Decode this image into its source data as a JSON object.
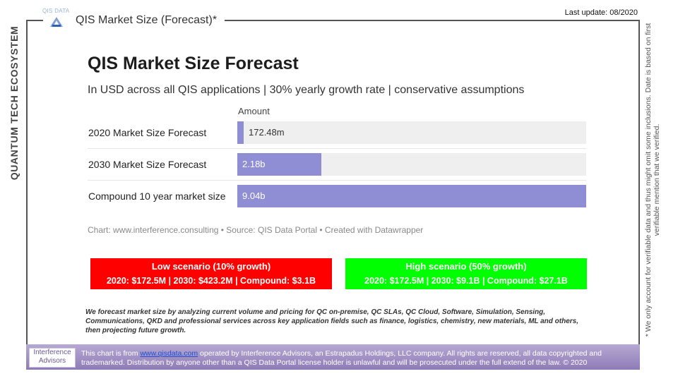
{
  "sidebar": {
    "vertical_label": "QUANTUM TECH ECOSYSTEM"
  },
  "header": {
    "logo_text": "QIS DATA",
    "title": "QIS Market Size (Forecast)*",
    "last_update": "Last update: 08/2020"
  },
  "side_note": "* We only account for verifiable data and thus might omit some inclusions. Date is based on first verifiable mention that we verified.",
  "chart_data": {
    "type": "bar",
    "orientation": "horizontal",
    "title": "QIS Market Size Forecast",
    "subtitle": "In USD across all QIS applications | 30% yearly growth rate | conservative assumptions",
    "column_header": "Amount",
    "categories": [
      "2020 Market Size Forecast",
      "2030 Market Size Forecast",
      "Compound 10 year market size"
    ],
    "values": [
      172480000,
      2180000000,
      9040000000
    ],
    "value_labels": [
      "172.48m",
      "2.18b",
      "9.04b"
    ],
    "xlim": [
      0,
      9040000000
    ],
    "bar_color": "#8f8ed4",
    "track_color": "#efefef",
    "footer": "Chart: www.interference.consulting • Source: QIS Data Portal • Created with Datawrapper"
  },
  "scenarios": {
    "low": {
      "title": "Low scenario (10% growth)",
      "values": "2020: $172.5M | 2030: $423.2M | Compound: $3.1B",
      "color": "#ff0000"
    },
    "high": {
      "title": "High scenario (50% growth)",
      "values": "2020: $172.5M | 2030: $9.1B | Compound: $27.1B",
      "color": "#00ff00"
    }
  },
  "methodology": "We forecast market size by analyzing current volume and pricing for QC on-premise, QC SLAs, QC Cloud, Software, Simulation, Sensing, Communications, QKD and professional services across key application fields such as finance, logistics, chemistry, new materials, ML and others, then projecting future growth.",
  "footer": {
    "logo_line1": "Interference",
    "logo_line2": "Advisors",
    "disclaimer_prefix": "This chart is from ",
    "link_text": "www.qisdata.com",
    "disclaimer_suffix": " operated by Interference Advisors, an Estrapadus Holdings, LLC company. All rights are reserved, all data copyrighted and trademarked. Distribution by anyone other than a QIS Data Portal license holder is unlawful and will be prosecuted under the full extend of the law. © 2020"
  }
}
